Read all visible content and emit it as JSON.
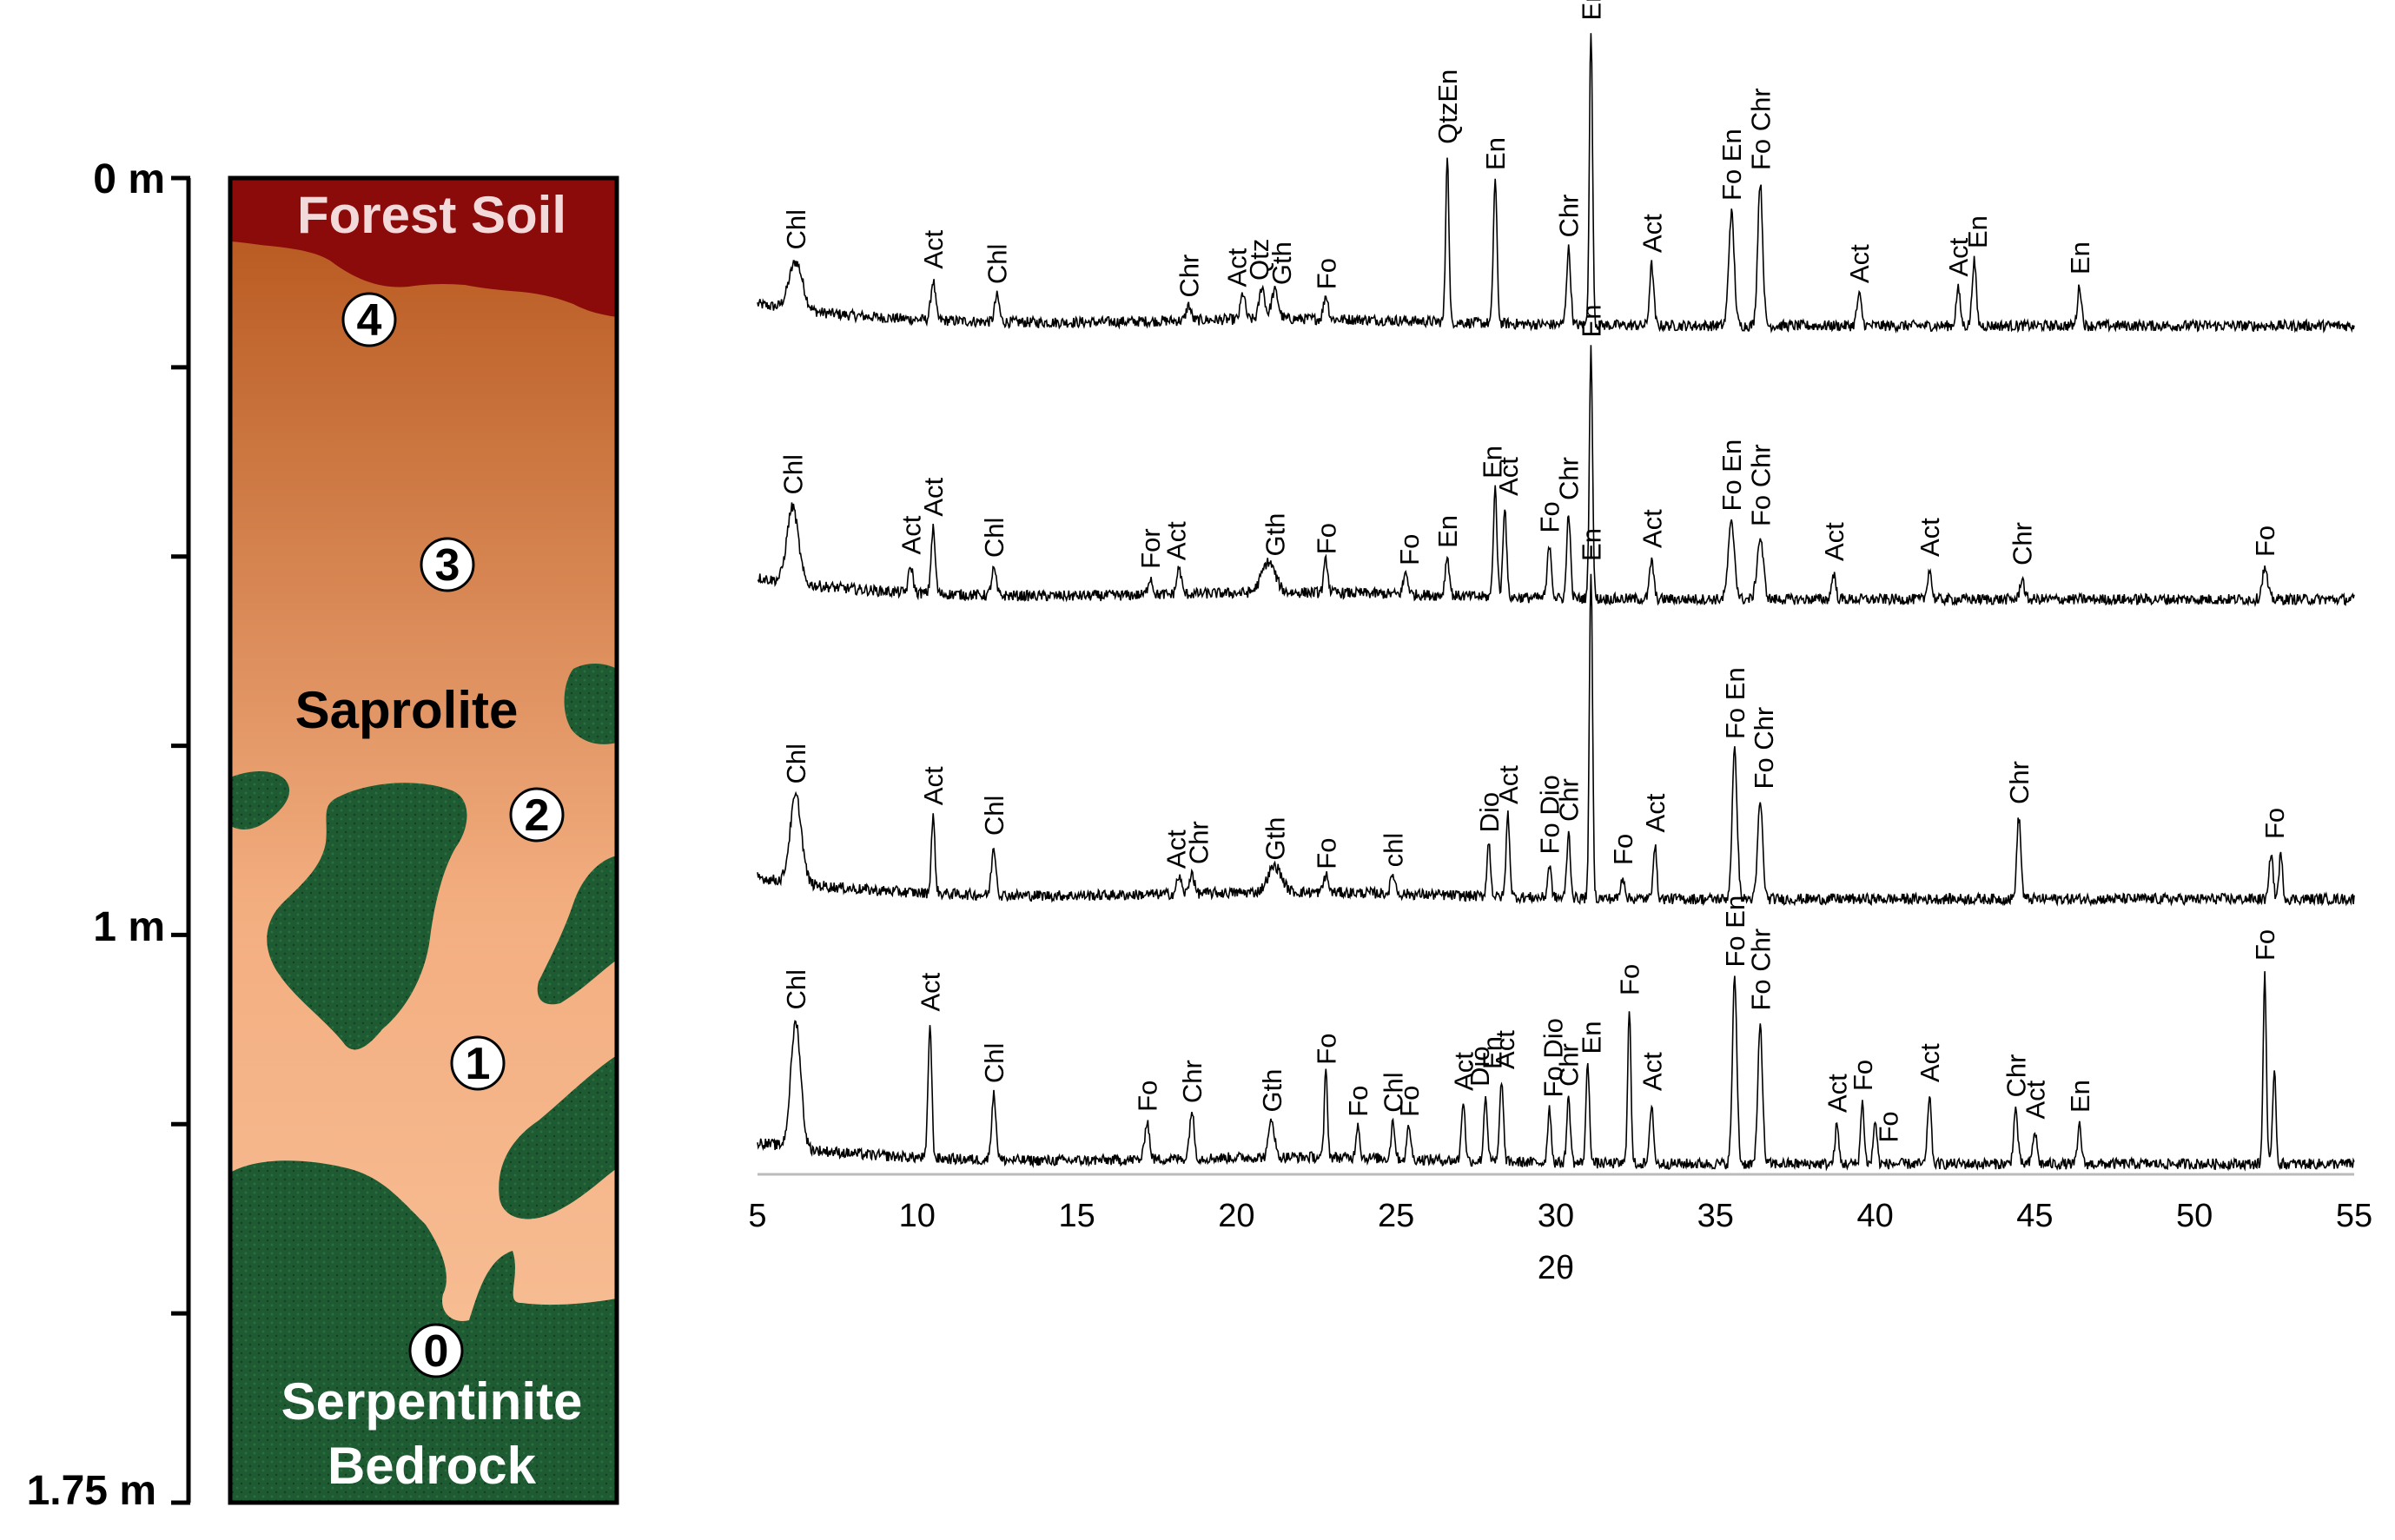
{
  "profile": {
    "depth_axis": {
      "labels": [
        {
          "depth": 0,
          "text": "0 m"
        },
        {
          "depth": 1.0,
          "text": "1 m"
        },
        {
          "depth": 1.75,
          "text": "1.75 m"
        }
      ],
      "minor_ticks": [
        0.25,
        0.5,
        0.75,
        1.25,
        1.5
      ]
    },
    "zones": {
      "forest_soil": "Forest Soil",
      "saprolite": "Saprolite",
      "bedrock_line1": "Serpentinite",
      "bedrock_line2": "Bedrock"
    },
    "sample_markers": [
      "4",
      "3",
      "2",
      "1",
      "0"
    ],
    "colors": {
      "forest_soil": "#8b0a0a",
      "saprolite_top": "#b4541a",
      "saprolite_bottom": "#f9c29a",
      "bedrock": "#1e5a32"
    }
  },
  "chart_data": {
    "type": "line",
    "title": "",
    "xlabel": "2θ",
    "ylabel": "",
    "xlim": [
      5,
      55
    ],
    "xticks": [
      5,
      10,
      15,
      20,
      25,
      30,
      35,
      40,
      45,
      50,
      55
    ],
    "grid": false,
    "series": [
      {
        "sample": "4",
        "baseline": 0.0,
        "peaks": [
          {
            "x": 6.2,
            "h": 0.22,
            "w": 0.3
          },
          {
            "x": 10.5,
            "h": 0.18,
            "w": 0.1
          },
          {
            "x": 12.5,
            "h": 0.12,
            "w": 0.1
          },
          {
            "x": 18.5,
            "h": 0.07,
            "w": 0.1
          },
          {
            "x": 20.2,
            "h": 0.12,
            "w": 0.1
          },
          {
            "x": 20.8,
            "h": 0.15,
            "w": 0.12
          },
          {
            "x": 21.2,
            "h": 0.13,
            "w": 0.15
          },
          {
            "x": 22.8,
            "h": 0.11,
            "w": 0.1
          },
          {
            "x": 26.6,
            "h": 0.78,
            "w": 0.07
          },
          {
            "x": 28.1,
            "h": 0.66,
            "w": 0.08
          },
          {
            "x": 30.4,
            "h": 0.35,
            "w": 0.09
          },
          {
            "x": 31.1,
            "h": 1.35,
            "w": 0.07
          },
          {
            "x": 33.0,
            "h": 0.28,
            "w": 0.09
          },
          {
            "x": 35.5,
            "h": 0.52,
            "w": 0.12
          },
          {
            "x": 36.4,
            "h": 0.66,
            "w": 0.11
          },
          {
            "x": 39.5,
            "h": 0.14,
            "w": 0.1
          },
          {
            "x": 42.6,
            "h": 0.17,
            "w": 0.09
          },
          {
            "x": 43.1,
            "h": 0.3,
            "w": 0.09
          },
          {
            "x": 46.4,
            "h": 0.18,
            "w": 0.09
          }
        ],
        "labels": [
          {
            "x": 6.2,
            "text": "Chl"
          },
          {
            "x": 10.5,
            "text": "Act"
          },
          {
            "x": 12.5,
            "text": "Chl"
          },
          {
            "x": 18.5,
            "text": "Chr"
          },
          {
            "x": 20.0,
            "text": "Act"
          },
          {
            "x": 20.7,
            "text": "Qtz"
          },
          {
            "x": 21.4,
            "text": "Gth"
          },
          {
            "x": 22.8,
            "text": "Fo"
          },
          {
            "x": 26.6,
            "text": "QtzEn"
          },
          {
            "x": 28.1,
            "text": "En"
          },
          {
            "x": 30.4,
            "text": "Chr"
          },
          {
            "x": 31.1,
            "text": "En"
          },
          {
            "x": 33.0,
            "text": "Act"
          },
          {
            "x": 35.5,
            "text": "Fo En"
          },
          {
            "x": 36.4,
            "text": "Fo Chr"
          },
          {
            "x": 39.5,
            "text": "Act"
          },
          {
            "x": 42.6,
            "text": "Act"
          },
          {
            "x": 43.2,
            "text": "En"
          },
          {
            "x": 46.4,
            "text": "En"
          }
        ]
      },
      {
        "sample": "3",
        "baseline": 0.0,
        "peaks": [
          {
            "x": 6.1,
            "h": 0.35,
            "w": 0.25
          },
          {
            "x": 9.8,
            "h": 0.12,
            "w": 0.1
          },
          {
            "x": 10.5,
            "h": 0.3,
            "w": 0.09
          },
          {
            "x": 12.4,
            "h": 0.12,
            "w": 0.1
          },
          {
            "x": 17.3,
            "h": 0.08,
            "w": 0.1
          },
          {
            "x": 18.2,
            "h": 0.12,
            "w": 0.1
          },
          {
            "x": 21.0,
            "h": 0.14,
            "w": 0.3
          },
          {
            "x": 22.8,
            "h": 0.15,
            "w": 0.09
          },
          {
            "x": 25.3,
            "h": 0.1,
            "w": 0.1
          },
          {
            "x": 26.6,
            "h": 0.18,
            "w": 0.09
          },
          {
            "x": 28.1,
            "h": 0.5,
            "w": 0.08
          },
          {
            "x": 28.4,
            "h": 0.42,
            "w": 0.08
          },
          {
            "x": 29.8,
            "h": 0.25,
            "w": 0.09
          },
          {
            "x": 30.4,
            "h": 0.4,
            "w": 0.08
          },
          {
            "x": 31.1,
            "h": 1.15,
            "w": 0.07
          },
          {
            "x": 33.0,
            "h": 0.18,
            "w": 0.09
          },
          {
            "x": 35.5,
            "h": 0.35,
            "w": 0.14
          },
          {
            "x": 36.4,
            "h": 0.28,
            "w": 0.14
          },
          {
            "x": 38.7,
            "h": 0.12,
            "w": 0.09
          },
          {
            "x": 41.7,
            "h": 0.14,
            "w": 0.09
          },
          {
            "x": 44.6,
            "h": 0.1,
            "w": 0.09
          },
          {
            "x": 52.2,
            "h": 0.14,
            "w": 0.12
          }
        ],
        "labels": [
          {
            "x": 6.1,
            "text": "Chl"
          },
          {
            "x": 9.8,
            "text": "Act"
          },
          {
            "x": 10.5,
            "text": "Act"
          },
          {
            "x": 12.4,
            "text": "Chl"
          },
          {
            "x": 17.3,
            "text": "For"
          },
          {
            "x": 18.1,
            "text": "Act"
          },
          {
            "x": 21.2,
            "text": "Gth"
          },
          {
            "x": 22.8,
            "text": "Fo"
          },
          {
            "x": 25.4,
            "text": "Fo"
          },
          {
            "x": 26.6,
            "text": "En"
          },
          {
            "x": 28.0,
            "text": "En"
          },
          {
            "x": 28.5,
            "text": "Act"
          },
          {
            "x": 29.8,
            "text": "Fo"
          },
          {
            "x": 30.4,
            "text": "Chr"
          },
          {
            "x": 31.1,
            "text": "En"
          },
          {
            "x": 33.0,
            "text": "Act"
          },
          {
            "x": 35.5,
            "text": "Fo En"
          },
          {
            "x": 36.4,
            "text": "Fo Chr"
          },
          {
            "x": 38.7,
            "text": "Act"
          },
          {
            "x": 41.7,
            "text": "Act"
          },
          {
            "x": 44.6,
            "text": "Chr"
          },
          {
            "x": 52.2,
            "text": "Fo"
          }
        ]
      },
      {
        "sample": "2",
        "baseline": 0.0,
        "peaks": [
          {
            "x": 6.2,
            "h": 0.4,
            "w": 0.25
          },
          {
            "x": 10.5,
            "h": 0.35,
            "w": 0.08
          },
          {
            "x": 12.4,
            "h": 0.22,
            "w": 0.1
          },
          {
            "x": 18.2,
            "h": 0.08,
            "w": 0.1
          },
          {
            "x": 18.6,
            "h": 0.1,
            "w": 0.1
          },
          {
            "x": 21.2,
            "h": 0.12,
            "w": 0.3
          },
          {
            "x": 22.8,
            "h": 0.08,
            "w": 0.1
          },
          {
            "x": 24.9,
            "h": 0.09,
            "w": 0.1
          },
          {
            "x": 27.9,
            "h": 0.25,
            "w": 0.08
          },
          {
            "x": 28.5,
            "h": 0.38,
            "w": 0.08
          },
          {
            "x": 29.8,
            "h": 0.15,
            "w": 0.08
          },
          {
            "x": 30.4,
            "h": 0.3,
            "w": 0.08
          },
          {
            "x": 31.1,
            "h": 1.5,
            "w": 0.07
          },
          {
            "x": 32.1,
            "h": 0.1,
            "w": 0.09
          },
          {
            "x": 33.1,
            "h": 0.25,
            "w": 0.08
          },
          {
            "x": 35.6,
            "h": 0.68,
            "w": 0.11
          },
          {
            "x": 36.4,
            "h": 0.45,
            "w": 0.11
          },
          {
            "x": 44.5,
            "h": 0.38,
            "w": 0.09
          },
          {
            "x": 52.4,
            "h": 0.22,
            "w": 0.08
          },
          {
            "x": 52.7,
            "h": 0.2,
            "w": 0.08
          }
        ],
        "labels": [
          {
            "x": 6.2,
            "text": "Chl"
          },
          {
            "x": 10.5,
            "text": "Act"
          },
          {
            "x": 12.4,
            "text": "Chl"
          },
          {
            "x": 18.1,
            "text": "Act"
          },
          {
            "x": 18.8,
            "text": "Chr"
          },
          {
            "x": 21.2,
            "text": "Gth"
          },
          {
            "x": 22.8,
            "text": "Fo"
          },
          {
            "x": 24.9,
            "text": "chl"
          },
          {
            "x": 27.9,
            "text": "Dio"
          },
          {
            "x": 28.5,
            "text": "Act"
          },
          {
            "x": 29.8,
            "text": "Fo Dio"
          },
          {
            "x": 30.4,
            "text": "Chr"
          },
          {
            "x": 31.1,
            "text": "En"
          },
          {
            "x": 32.1,
            "text": "Fo"
          },
          {
            "x": 33.1,
            "text": "Act"
          },
          {
            "x": 35.6,
            "text": "Fo En"
          },
          {
            "x": 36.5,
            "text": "Fo Chr"
          },
          {
            "x": 44.5,
            "text": "Chr"
          },
          {
            "x": 52.5,
            "text": "Fo"
          }
        ]
      },
      {
        "sample": "1",
        "baseline": 0.0,
        "peaks": [
          {
            "x": 6.2,
            "h": 0.58,
            "w": 0.22
          },
          {
            "x": 10.4,
            "h": 0.62,
            "w": 0.08
          },
          {
            "x": 12.4,
            "h": 0.3,
            "w": 0.1
          },
          {
            "x": 17.2,
            "h": 0.18,
            "w": 0.1
          },
          {
            "x": 18.6,
            "h": 0.22,
            "w": 0.1
          },
          {
            "x": 21.1,
            "h": 0.18,
            "w": 0.12
          },
          {
            "x": 22.8,
            "h": 0.4,
            "w": 0.07
          },
          {
            "x": 23.8,
            "h": 0.16,
            "w": 0.08
          },
          {
            "x": 24.9,
            "h": 0.18,
            "w": 0.08
          },
          {
            "x": 25.4,
            "h": 0.16,
            "w": 0.08
          },
          {
            "x": 27.1,
            "h": 0.28,
            "w": 0.08
          },
          {
            "x": 27.8,
            "h": 0.3,
            "w": 0.08
          },
          {
            "x": 28.3,
            "h": 0.38,
            "w": 0.08
          },
          {
            "x": 29.8,
            "h": 0.25,
            "w": 0.08
          },
          {
            "x": 30.4,
            "h": 0.3,
            "w": 0.08
          },
          {
            "x": 31.0,
            "h": 0.45,
            "w": 0.08
          },
          {
            "x": 32.3,
            "h": 0.72,
            "w": 0.07
          },
          {
            "x": 33.0,
            "h": 0.28,
            "w": 0.08
          },
          {
            "x": 35.6,
            "h": 0.85,
            "w": 0.1
          },
          {
            "x": 36.4,
            "h": 0.65,
            "w": 0.1
          },
          {
            "x": 38.8,
            "h": 0.18,
            "w": 0.08
          },
          {
            "x": 39.6,
            "h": 0.28,
            "w": 0.08
          },
          {
            "x": 40.0,
            "h": 0.2,
            "w": 0.08
          },
          {
            "x": 41.7,
            "h": 0.32,
            "w": 0.08
          },
          {
            "x": 44.4,
            "h": 0.25,
            "w": 0.09
          },
          {
            "x": 45.0,
            "h": 0.15,
            "w": 0.09
          },
          {
            "x": 46.4,
            "h": 0.18,
            "w": 0.08
          },
          {
            "x": 52.2,
            "h": 0.88,
            "w": 0.07
          },
          {
            "x": 52.5,
            "h": 0.45,
            "w": 0.07
          }
        ],
        "labels": [
          {
            "x": 6.2,
            "text": "Chl"
          },
          {
            "x": 10.4,
            "text": "Act"
          },
          {
            "x": 12.4,
            "text": "Chl"
          },
          {
            "x": 17.2,
            "text": "Fo"
          },
          {
            "x": 18.6,
            "text": "Chr"
          },
          {
            "x": 21.1,
            "text": "Gth"
          },
          {
            "x": 22.8,
            "text": "Fo"
          },
          {
            "x": 23.8,
            "text": "Fo"
          },
          {
            "x": 24.9,
            "text": "Chl"
          },
          {
            "x": 25.4,
            "text": "Fo"
          },
          {
            "x": 27.1,
            "text": "Act"
          },
          {
            "x": 27.6,
            "text": "Dio"
          },
          {
            "x": 28.0,
            "text": "En"
          },
          {
            "x": 28.4,
            "text": "Act"
          },
          {
            "x": 29.9,
            "text": "Fo Dio"
          },
          {
            "x": 30.4,
            "text": "Chr"
          },
          {
            "x": 31.1,
            "text": "En"
          },
          {
            "x": 32.3,
            "text": "Fo"
          },
          {
            "x": 33.0,
            "text": "Act"
          },
          {
            "x": 35.6,
            "text": "Fo En"
          },
          {
            "x": 36.4,
            "text": "Fo Chr"
          },
          {
            "x": 38.8,
            "text": "Act"
          },
          {
            "x": 39.6,
            "text": "Fo"
          },
          {
            "x": 40.4,
            "text": "Fo"
          },
          {
            "x": 41.7,
            "text": "Act"
          },
          {
            "x": 44.4,
            "text": "Chr"
          },
          {
            "x": 45.0,
            "text": "Act"
          },
          {
            "x": 46.4,
            "text": "En"
          },
          {
            "x": 52.2,
            "text": "Fo"
          }
        ]
      }
    ]
  }
}
